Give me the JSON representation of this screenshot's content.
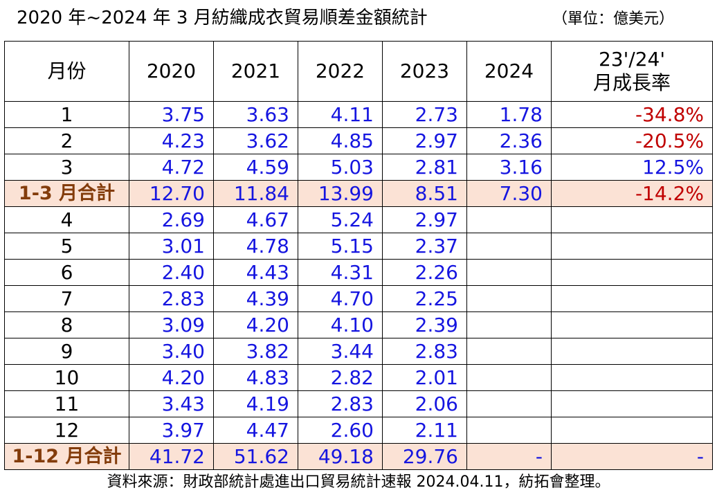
{
  "title": "2020 年~2024 年 3 月紡織成衣貿易順差金額統計",
  "unit": "（單位：億美元）",
  "table": {
    "headers": [
      "月份",
      "2020",
      "2021",
      "2022",
      "2023",
      "2024",
      "23'/24'",
      "月成長率"
    ],
    "rows": [
      {
        "month": "1",
        "values": [
          "3.75",
          "3.63",
          "4.11",
          "2.73",
          "1.78"
        ],
        "growth": "-34.8%",
        "growth_negative": true,
        "subtotal": false
      },
      {
        "month": "2",
        "values": [
          "4.23",
          "3.62",
          "4.85",
          "2.97",
          "2.36"
        ],
        "growth": "-20.5%",
        "growth_negative": true,
        "subtotal": false
      },
      {
        "month": "3",
        "values": [
          "4.72",
          "4.59",
          "5.03",
          "2.81",
          "3.16"
        ],
        "growth": "12.5%",
        "growth_negative": false,
        "subtotal": false
      },
      {
        "month": "1-3 月合計",
        "values": [
          "12.70",
          "11.84",
          "13.99",
          "8.51",
          "7.30"
        ],
        "growth": "-14.2%",
        "growth_negative": true,
        "subtotal": true
      },
      {
        "month": "4",
        "values": [
          "2.69",
          "4.67",
          "5.24",
          "2.97",
          ""
        ],
        "growth": "",
        "growth_negative": false,
        "subtotal": false
      },
      {
        "month": "5",
        "values": [
          "3.01",
          "4.78",
          "5.15",
          "2.37",
          ""
        ],
        "growth": "",
        "growth_negative": false,
        "subtotal": false
      },
      {
        "month": "6",
        "values": [
          "2.40",
          "4.43",
          "4.31",
          "2.26",
          ""
        ],
        "growth": "",
        "growth_negative": false,
        "subtotal": false
      },
      {
        "month": "7",
        "values": [
          "2.83",
          "4.39",
          "4.70",
          "2.25",
          ""
        ],
        "growth": "",
        "growth_negative": false,
        "subtotal": false
      },
      {
        "month": "8",
        "values": [
          "3.09",
          "4.20",
          "4.10",
          "2.39",
          ""
        ],
        "growth": "",
        "growth_negative": false,
        "subtotal": false
      },
      {
        "month": "9",
        "values": [
          "3.40",
          "3.82",
          "3.44",
          "2.83",
          ""
        ],
        "growth": "",
        "growth_negative": false,
        "subtotal": false
      },
      {
        "month": "10",
        "values": [
          "4.20",
          "4.83",
          "2.82",
          "2.01",
          ""
        ],
        "growth": "",
        "growth_negative": false,
        "subtotal": false
      },
      {
        "month": "11",
        "values": [
          "3.43",
          "4.19",
          "2.83",
          "2.06",
          ""
        ],
        "growth": "",
        "growth_negative": false,
        "subtotal": false
      },
      {
        "month": "12",
        "values": [
          "3.97",
          "4.47",
          "2.60",
          "2.11",
          ""
        ],
        "growth": "",
        "growth_negative": false,
        "subtotal": false
      },
      {
        "month": "1-12 月合計",
        "values": [
          "41.72",
          "51.62",
          "49.18",
          "29.76",
          "-"
        ],
        "growth": "-",
        "growth_negative": false,
        "subtotal": true
      }
    ]
  },
  "colors": {
    "value_text": "#1515e0",
    "negative_text": "#c00000",
    "subtotal_bg": "#fbe2d5",
    "subtotal_label": "#833c0b"
  },
  "footer": "資料來源：財政部統計處進出口貿易統計速報 2024.04.11，紡拓會整理。"
}
